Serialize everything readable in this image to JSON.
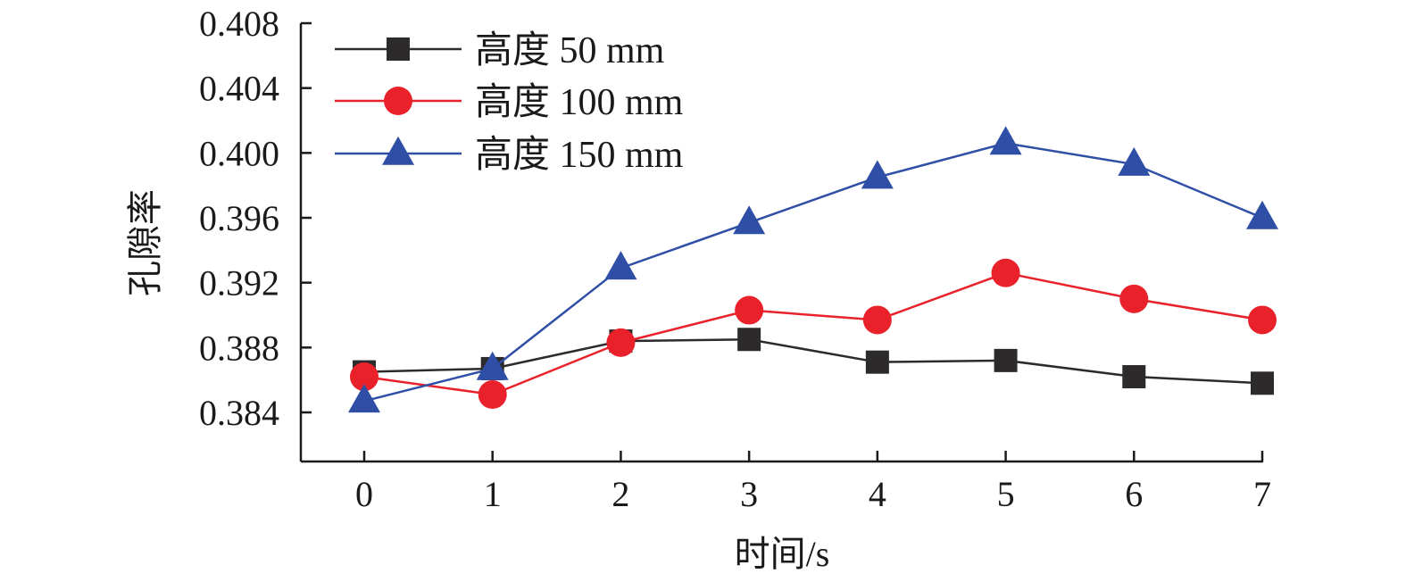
{
  "chart_data": {
    "type": "line",
    "title": "",
    "xlabel": "时间/s",
    "ylabel": "孔隙率",
    "x": [
      0,
      1,
      2,
      3,
      4,
      5,
      6,
      7
    ],
    "x_tick_labels": [
      "0",
      "1",
      "2",
      "3",
      "4",
      "5",
      "6",
      "7"
    ],
    "y_tick_labels": [
      "0.384",
      "0.388",
      "0.392",
      "0.396",
      "0.400",
      "0.404",
      "0.408"
    ],
    "y_ticks": [
      0.384,
      0.388,
      0.392,
      0.396,
      0.4,
      0.404,
      0.408
    ],
    "xlim": [
      -0.5,
      7
    ],
    "ylim": [
      0.381,
      0.408
    ],
    "grid": false,
    "legend_position": "top-left",
    "series": [
      {
        "name": "高度 50 mm",
        "color": "#2d2a2b",
        "marker": "square",
        "values": [
          0.3865,
          0.3867,
          0.3884,
          0.3885,
          0.3871,
          0.3872,
          0.3862,
          0.3858
        ]
      },
      {
        "name": "高度 100 mm",
        "color": "#e8212b",
        "marker": "circle",
        "values": [
          0.3862,
          0.3851,
          0.3883,
          0.3903,
          0.3897,
          0.3926,
          0.391,
          0.3897
        ]
      },
      {
        "name": "高度 150 mm",
        "color": "#2f4ea5",
        "marker": "triangle",
        "values": [
          0.3847,
          0.3867,
          0.3929,
          0.3957,
          0.3985,
          0.4006,
          0.3993,
          0.396
        ]
      }
    ]
  }
}
